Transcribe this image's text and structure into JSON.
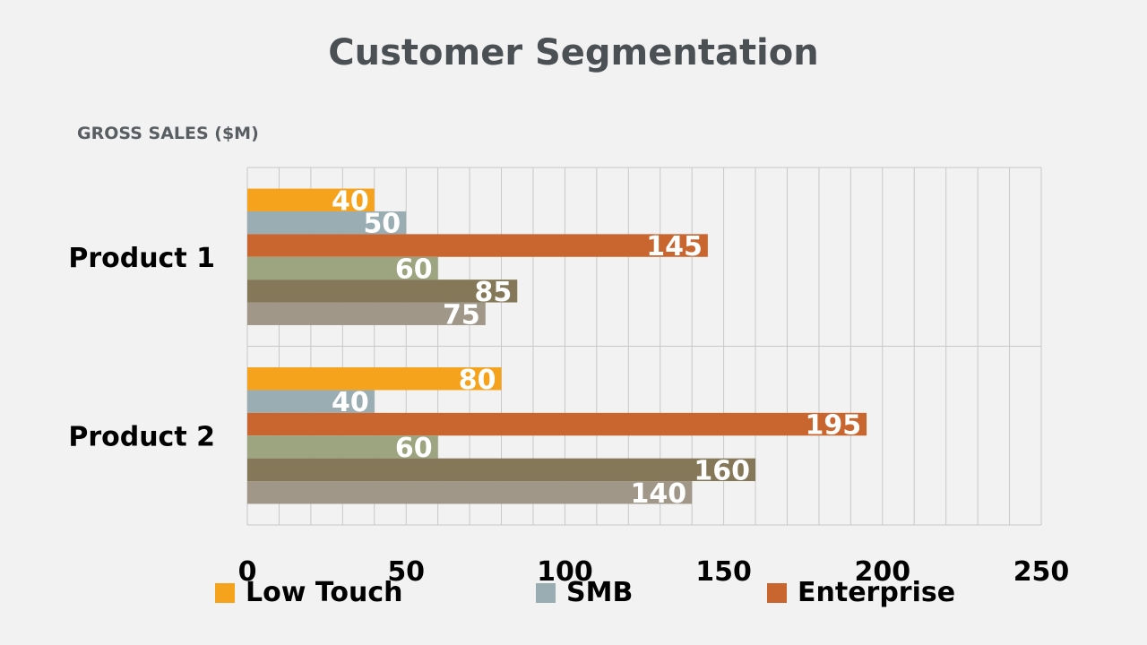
{
  "chart_data": {
    "type": "bar",
    "orientation": "horizontal",
    "title": "Customer Segmentation",
    "ylabel": "GROSS SALES ($M)",
    "categories": [
      "Product 1",
      "Product 2"
    ],
    "xlim": [
      0,
      250
    ],
    "x_ticks": [
      0,
      50,
      100,
      150,
      200,
      250
    ],
    "grid": true,
    "legend_position": "bottom",
    "series": [
      {
        "name": "Low Touch",
        "color": "#f5a21d",
        "values": [
          40,
          80
        ]
      },
      {
        "name": "SMB",
        "color": "#9aadb3",
        "values": [
          50,
          40
        ]
      },
      {
        "name": "Enterprise",
        "color": "#c96630",
        "values": [
          145,
          195
        ]
      },
      {
        "color": "#9ca580",
        "values": [
          60,
          60
        ]
      },
      {
        "color": "#857858",
        "values": [
          85,
          160
        ]
      },
      {
        "color": "#a09789",
        "values": [
          75,
          140
        ]
      }
    ]
  }
}
